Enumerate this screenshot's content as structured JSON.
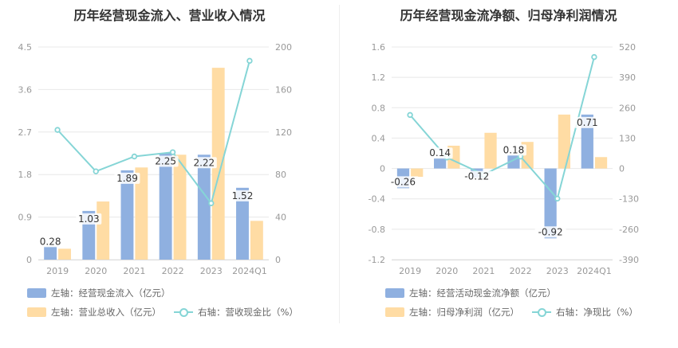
{
  "colors": {
    "bar_primary": "#8fb0e0",
    "bar_secondary": "#ffdca4",
    "line": "#85d5d6",
    "grid": "#e8e8e8",
    "tick_text": "#999999",
    "label_text": "#333333"
  },
  "charts": [
    {
      "title": "历年经营现金流入、营业收入情况",
      "legend": {
        "bar1": "左轴：经营现金流入（亿元）",
        "bar2": "左轴：营业总收入（亿元）",
        "line": "右轴：营收现金比（%）"
      },
      "icons": {
        "line_legend": "line-circle-icon"
      }
    },
    {
      "title": "历年经营现金流净额、归母净利润情况",
      "legend": {
        "bar1": "左轴：经营活动现金流净额（亿元）",
        "bar2": "左轴：归母净利润（亿元）",
        "line": "右轴：净现比（%）"
      },
      "icons": {
        "line_legend": "line-circle-icon"
      }
    }
  ],
  "chart_data": [
    {
      "type": "bar",
      "categories": [
        "2019",
        "2020",
        "2021",
        "2022",
        "2023",
        "2024Q1"
      ],
      "series": [
        {
          "name": "左轴：经营现金流入（亿元）",
          "values": [
            0.28,
            1.03,
            1.89,
            2.25,
            2.22,
            1.52
          ],
          "labels": [
            "0.28",
            "1.03",
            "1.89",
            "2.25",
            "2.22",
            "1.52"
          ],
          "axis": "left"
        },
        {
          "name": "左轴：营业总收入（亿元）",
          "values": [
            0.23,
            1.23,
            1.95,
            2.22,
            4.06,
            0.82
          ],
          "axis": "left"
        },
        {
          "name": "右轴：营收现金比（%）",
          "values": [
            122,
            83,
            97,
            101,
            53,
            187
          ],
          "axis": "right",
          "type": "line"
        }
      ],
      "left_axis": {
        "min": 0,
        "max": 4.5,
        "ticks": [
          "0",
          "0.9",
          "1.8",
          "2.7",
          "3.6",
          "4.5"
        ]
      },
      "right_axis": {
        "min": 0,
        "max": 200,
        "ticks": [
          "0",
          "40",
          "80",
          "120",
          "160",
          "200"
        ]
      },
      "grid": true,
      "legend_position": "bottom-left"
    },
    {
      "type": "bar",
      "categories": [
        "2019",
        "2020",
        "2021",
        "2022",
        "2023",
        "2024Q1"
      ],
      "series": [
        {
          "name": "左轴：经营活动现金流净额（亿元）",
          "values": [
            -0.26,
            0.14,
            -0.12,
            0.18,
            -0.92,
            0.71
          ],
          "labels": [
            "-0.26",
            "0.14",
            "-0.12",
            "0.18",
            "-0.92",
            "0.71"
          ],
          "axis": "left"
        },
        {
          "name": "左轴：归母净利润（亿元）",
          "values": [
            -0.11,
            0.3,
            0.47,
            0.35,
            0.71,
            0.15
          ],
          "axis": "left"
        },
        {
          "name": "右轴：净现比（%）",
          "values": [
            229,
            47,
            -26,
            51,
            -129,
            477
          ],
          "axis": "right",
          "type": "line"
        }
      ],
      "left_axis": {
        "min": -1.2,
        "max": 1.6,
        "ticks": [
          "-1.2",
          "-0.8",
          "-0.4",
          "0",
          "0.4",
          "0.8",
          "1.2",
          "1.6"
        ]
      },
      "right_axis": {
        "min": -390,
        "max": 520,
        "ticks": [
          "-390",
          "-260",
          "-130",
          "0",
          "130",
          "260",
          "390",
          "520"
        ]
      },
      "grid": true,
      "legend_position": "bottom-left"
    }
  ]
}
